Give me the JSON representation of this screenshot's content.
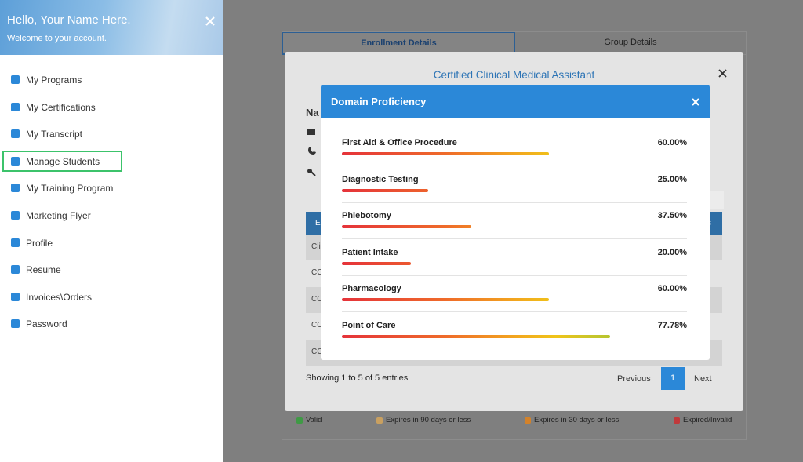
{
  "sidebar": {
    "greeting": "Hello, Your Name Here.",
    "subtitle": "Welcome to your account.",
    "menu": [
      "My Programs",
      "My Certifications",
      "My Transcript",
      "Manage Students",
      "My Training Program",
      "Marketing Flyer",
      "Profile",
      "Resume",
      "Invoices\\Orders",
      "Password"
    ]
  },
  "background": {
    "tabs": [
      "Enrollment Details",
      "Group Details"
    ],
    "legend": [
      {
        "label": "Valid",
        "color": "#3f9a45"
      },
      {
        "label": "Expires in 90 days or less",
        "color": "#c9a060"
      },
      {
        "label": "Expires in 30 days or less",
        "color": "#d3822a"
      },
      {
        "label": "Expired/Invalid",
        "color": "#c0393b"
      }
    ]
  },
  "course_modal": {
    "title": "Certified Clinical Medical Assistant",
    "name_fragment": "Na",
    "table_header": [
      "E",
      "cs"
    ],
    "rows": [
      "Cli",
      "CC",
      "CC",
      "CC",
      "CC"
    ],
    "entries_info": "Showing 1 to 5 of 5 entries",
    "pagination": {
      "previous": "Previous",
      "current": "1",
      "next": "Next"
    }
  },
  "proficiency_modal": {
    "title": "Domain Proficiency",
    "items": [
      {
        "name": "First Aid & Office Procedure",
        "value": 60,
        "value_label": "60.00%"
      },
      {
        "name": "Diagnostic Testing",
        "value": 25,
        "value_label": "25.00%"
      },
      {
        "name": "Phlebotomy",
        "value": 37.5,
        "value_label": "37.50%"
      },
      {
        "name": "Patient Intake",
        "value": 20,
        "value_label": "20.00%"
      },
      {
        "name": "Pharmacology",
        "value": 60,
        "value_label": "60.00%"
      },
      {
        "name": "Point of Care",
        "value": 77.78,
        "value_label": "77.78%"
      }
    ]
  }
}
